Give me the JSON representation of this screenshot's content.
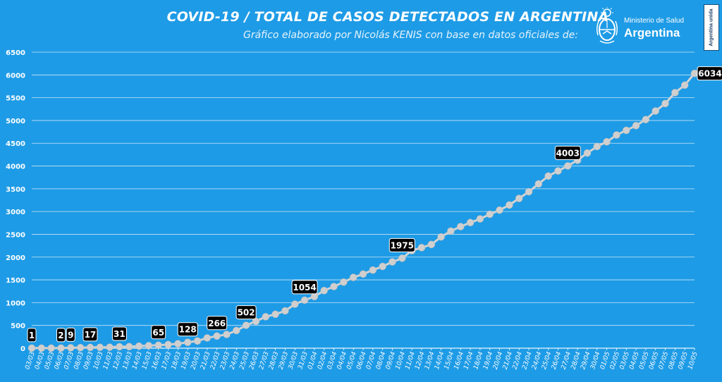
{
  "header": {
    "title": "COVID-19  /  TOTAL DE CASOS DETECTADOS EN ARGENTINA",
    "subtitle": "Gráfico elaborado por Nicolás KENIS con base en datos oficiales de:"
  },
  "logo": {
    "ministry": "Ministerio de Salud",
    "country": "Argentina",
    "emblem_icon": "coat-of-arms-icon"
  },
  "badge": {
    "text": "Argentina unida"
  },
  "colors": {
    "background": "#1e9be6",
    "gridline": "#ffffff",
    "line": "#d4d4d4",
    "marker": "#cfcfcf",
    "label_bg": "#000000",
    "label_text": "#ffffff"
  },
  "chart_data": {
    "type": "line",
    "title": "COVID-19  /  TOTAL DE CASOS DETECTADOS EN ARGENTINA",
    "xlabel": "",
    "ylabel": "",
    "ylim": [
      0,
      6500
    ],
    "yticks": [
      0,
      500,
      1000,
      1500,
      2000,
      2500,
      3000,
      3500,
      4000,
      4500,
      5000,
      5500,
      6000,
      6500
    ],
    "grid": true,
    "categories": [
      "03/03",
      "04/03",
      "05/03",
      "06/03",
      "07/03",
      "08/03",
      "09/03",
      "10/03",
      "11/03",
      "12/03",
      "13/03",
      "14/03",
      "15/03",
      "16/03",
      "17/03",
      "18/03",
      "19/03",
      "20/03",
      "21/03",
      "22/03",
      "23/03",
      "24/03",
      "25/03",
      "26/03",
      "27/03",
      "28/03",
      "29/03",
      "30/03",
      "31/03",
      "01/04",
      "02/04",
      "03/04",
      "04/04",
      "05/04",
      "06/04",
      "07/04",
      "08/04",
      "09/04",
      "10/04",
      "11/04",
      "12/04",
      "13/04",
      "14/04",
      "15/04",
      "16/04",
      "17/04",
      "18/04",
      "19/04",
      "20/04",
      "21/04",
      "22/04",
      "23/04",
      "24/04",
      "25/04",
      "26/04",
      "27/04",
      "28/04",
      "29/04",
      "30/04",
      "01/05",
      "02/05",
      "03/05",
      "04/05",
      "05/05",
      "06/05",
      "07/05",
      "08/05",
      "09/05",
      "10/05"
    ],
    "values": [
      1,
      1,
      1,
      2,
      9,
      12,
      17,
      19,
      21,
      31,
      34,
      45,
      56,
      65,
      79,
      97,
      128,
      158,
      225,
      266,
      301,
      387,
      502,
      589,
      690,
      745,
      820,
      966,
      1054,
      1133,
      1265,
      1353,
      1451,
      1554,
      1628,
      1715,
      1795,
      1894,
      1975,
      2142,
      2208,
      2277,
      2443,
      2571,
      2669,
      2758,
      2839,
      2941,
      3031,
      3144,
      3288,
      3435,
      3607,
      3780,
      3892,
      4003,
      4127,
      4285,
      4428,
      4532,
      4681,
      4783,
      4887,
      5020,
      5208,
      5371,
      5611,
      5776,
      6034
    ],
    "labeled": [
      {
        "date": "03/03",
        "value": 1
      },
      {
        "date": "06/03",
        "value": 2
      },
      {
        "date": "07/03",
        "value": 9
      },
      {
        "date": "09/03",
        "value": 17
      },
      {
        "date": "12/03",
        "value": 31
      },
      {
        "date": "16/03",
        "value": 65
      },
      {
        "date": "19/03",
        "value": 128
      },
      {
        "date": "22/03",
        "value": 266
      },
      {
        "date": "25/03",
        "value": 502
      },
      {
        "date": "31/03",
        "value": 1054
      },
      {
        "date": "10/04",
        "value": 1975
      },
      {
        "date": "27/04",
        "value": 4003
      },
      {
        "date": "10/05",
        "value": 6034
      }
    ]
  }
}
